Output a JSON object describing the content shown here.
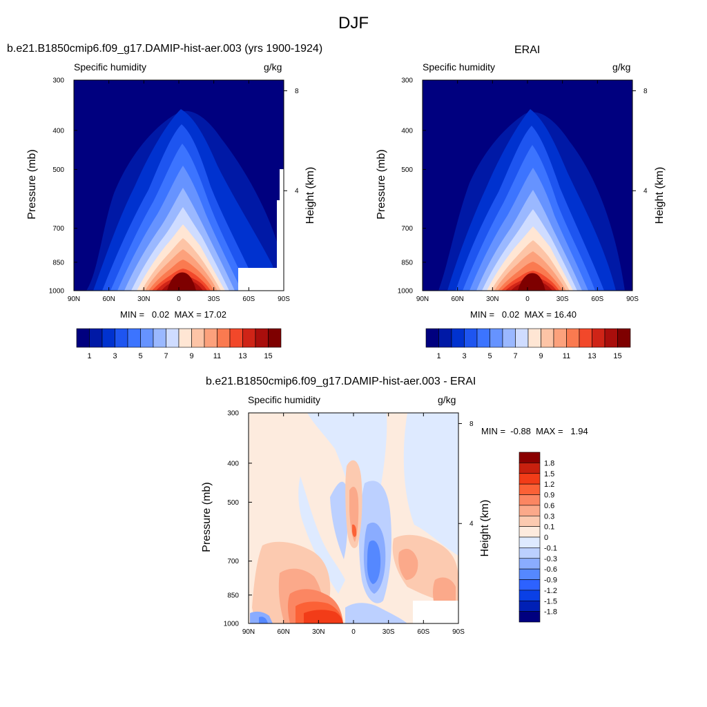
{
  "page": {
    "season": "DJF"
  },
  "colors": {
    "seq15": [
      "#00007f",
      "#0019a6",
      "#0032cf",
      "#1e55f0",
      "#3c74ff",
      "#6693ff",
      "#9ab8ff",
      "#cfdcff",
      "#ffe6d4",
      "#fdc4a6",
      "#fca17c",
      "#fa7a50",
      "#f2482a",
      "#cf2417",
      "#a90e0c",
      "#7e0000"
    ],
    "diff": [
      "#00007f",
      "#0020b5",
      "#0a40e6",
      "#2d62ff",
      "#5588ff",
      "#8aacff",
      "#bcd0ff",
      "#deeaff",
      "#fdebde",
      "#fccab0",
      "#fba98a",
      "#fb8662",
      "#fb6136",
      "#f23c18",
      "#c8200e",
      "#8a0000"
    ]
  },
  "panels": [
    {
      "title": "b.e21.B1850cmip6.f09_g17.DAMIP-hist-aer.003 (yrs 1900-1924)",
      "left_label": "Specific humidity",
      "right_label": "g/kg",
      "min_label": "MIN =",
      "min_value": "0.02",
      "max_label": "MAX =",
      "max_value": "17.02"
    },
    {
      "title": "ERAI",
      "left_label": "Specific humidity",
      "right_label": "g/kg",
      "min_label": "MIN =",
      "min_value": "0.02",
      "max_label": "MAX =",
      "max_value": "16.40"
    },
    {
      "title": "b.e21.B1850cmip6.f09_g17.DAMIP-hist-aer.003 - ERAI",
      "left_label": "Specific humidity",
      "right_label": "g/kg",
      "min_label": "MIN =",
      "min_value": "-0.88",
      "max_label": "MAX =",
      "max_value": "1.94"
    }
  ],
  "chart_data": [
    {
      "type": "heatmap",
      "title": "b.e21.B1850cmip6.f09_g17.DAMIP-hist-aer.003 (yrs 1900-1924)",
      "variable": "Specific humidity",
      "units": "g/kg",
      "xlabel": "",
      "ylabel": "Pressure (mb)",
      "ylabel_right": "Height (km)",
      "x_ticks": [
        "90N",
        "60N",
        "30N",
        "0",
        "30S",
        "60S",
        "90S"
      ],
      "y_ticks": [
        "300",
        "400",
        "500",
        "700",
        "850",
        "1000"
      ],
      "y_right_ticks": [
        "8",
        "4"
      ],
      "colorbar_levels": [
        1,
        2,
        3,
        4,
        5,
        6,
        7,
        8,
        9,
        10,
        11,
        12,
        13,
        14,
        15
      ],
      "colorbar_labels": [
        "1",
        "3",
        "5",
        "7",
        "9",
        "11",
        "13",
        "15"
      ],
      "min": 0.02,
      "max": 17.02
    },
    {
      "type": "heatmap",
      "title": "ERAI",
      "variable": "Specific humidity",
      "units": "g/kg",
      "xlabel": "",
      "ylabel": "Pressure (mb)",
      "ylabel_right": "Height (km)",
      "x_ticks": [
        "90N",
        "60N",
        "30N",
        "0",
        "30S",
        "60S",
        "90S"
      ],
      "y_ticks": [
        "300",
        "400",
        "500",
        "700",
        "850",
        "1000"
      ],
      "y_right_ticks": [
        "8",
        "4"
      ],
      "colorbar_levels": [
        1,
        2,
        3,
        4,
        5,
        6,
        7,
        8,
        9,
        10,
        11,
        12,
        13,
        14,
        15
      ],
      "colorbar_labels": [
        "1",
        "3",
        "5",
        "7",
        "9",
        "11",
        "13",
        "15"
      ],
      "min": 0.02,
      "max": 16.4
    },
    {
      "type": "heatmap",
      "title": "b.e21.B1850cmip6.f09_g17.DAMIP-hist-aer.003 - ERAI",
      "variable": "Specific humidity",
      "units": "g/kg",
      "xlabel": "",
      "ylabel": "Pressure (mb)",
      "ylabel_right": "Height (km)",
      "x_ticks": [
        "90N",
        "60N",
        "30N",
        "0",
        "30S",
        "60S",
        "90S"
      ],
      "y_ticks": [
        "300",
        "400",
        "500",
        "700",
        "850",
        "1000"
      ],
      "y_right_ticks": [
        "8",
        "4"
      ],
      "colorbar_labels": [
        "1.8",
        "1.5",
        "1.2",
        "0.9",
        "0.6",
        "0.3",
        "0.1",
        "0",
        "-0.1",
        "-0.3",
        "-0.6",
        "-0.9",
        "-1.2",
        "-1.5",
        "-1.8"
      ],
      "min": -0.88,
      "max": 1.94
    }
  ],
  "axis_labels": {
    "pressure": "Pressure (mb)",
    "height": "Height (km)"
  }
}
